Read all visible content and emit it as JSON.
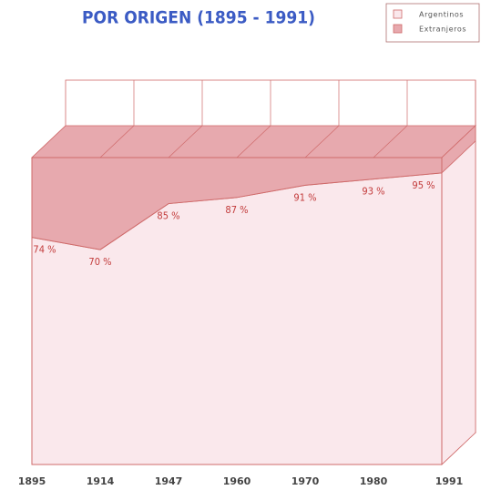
{
  "chart_data": {
    "type": "area",
    "stacked": true,
    "title": "POR ORIGEN (1895 - 1991)",
    "categories": [
      "1895",
      "1914",
      "1947",
      "1960",
      "1970",
      "1980",
      "1991"
    ],
    "series": [
      {
        "name": "Argentinos",
        "color": "#fae8ec",
        "values": [
          74,
          70,
          85,
          87,
          91,
          93,
          95
        ],
        "value_labels": [
          "74 %",
          "70 %",
          "85 %",
          "87 %",
          "91 %",
          "93 %",
          "95 %"
        ]
      },
      {
        "name": "Extranjeros",
        "color": "#e7a9ae",
        "values": [
          26,
          30,
          15,
          13,
          9,
          7,
          5
        ]
      }
    ],
    "ylim": [
      0,
      100
    ],
    "legend": "upper right"
  }
}
